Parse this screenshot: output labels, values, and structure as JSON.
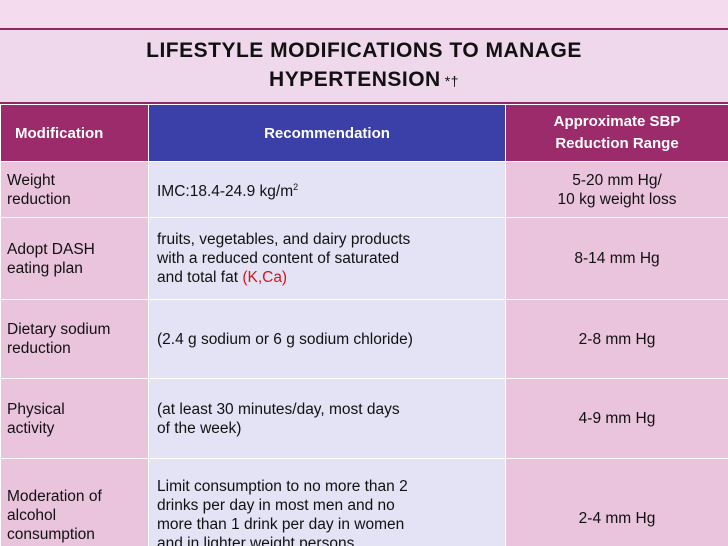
{
  "title": {
    "line1": "LIFESTYLE MODIFICATIONS TO MANAGE",
    "line2": "HYPERTENSION",
    "symbols": "*†"
  },
  "table": {
    "headers": {
      "modification": "Modification",
      "recommendation": "Recommendation",
      "reduction_line1": "Approximate SBP",
      "reduction_line2": "Reduction Range"
    },
    "rows": [
      {
        "modification": [
          "Weight",
          "reduction"
        ],
        "recommendation": [
          "IMC:18.4-24.9 kg/m"
        ],
        "recommendation_sup": "2",
        "reduction": [
          "5-20 mm Hg/",
          "10 kg weight loss"
        ]
      },
      {
        "modification": [
          "Adopt DASH",
          "eating plan"
        ],
        "recommendation": [
          "fruits, vegetables, and dairy products",
          "with a reduced content of saturated",
          "and total fat "
        ],
        "recommendation_highlight": "(K,Ca)",
        "reduction": [
          "8-14 mm Hg"
        ]
      },
      {
        "modification": [
          "Dietary sodium",
          "reduction"
        ],
        "recommendation": [
          "(2.4 g sodium or 6 g sodium chloride)"
        ],
        "reduction": [
          "2-8 mm Hg"
        ]
      },
      {
        "modification": [
          "Physical",
          "activity"
        ],
        "recommendation": [
          "(at least 30 minutes/day, most days",
          "of the week)"
        ],
        "reduction": [
          "4-9 mm Hg"
        ]
      },
      {
        "modification": [
          "Moderation of",
          "alcohol",
          "consumption"
        ],
        "recommendation": [
          "Limit consumption to no more than 2",
          "drinks per day in most men and no",
          "more than 1 drink per day in women",
          "and in lighter weight persons"
        ],
        "reduction": [
          "2-4 mm Hg"
        ]
      }
    ]
  }
}
